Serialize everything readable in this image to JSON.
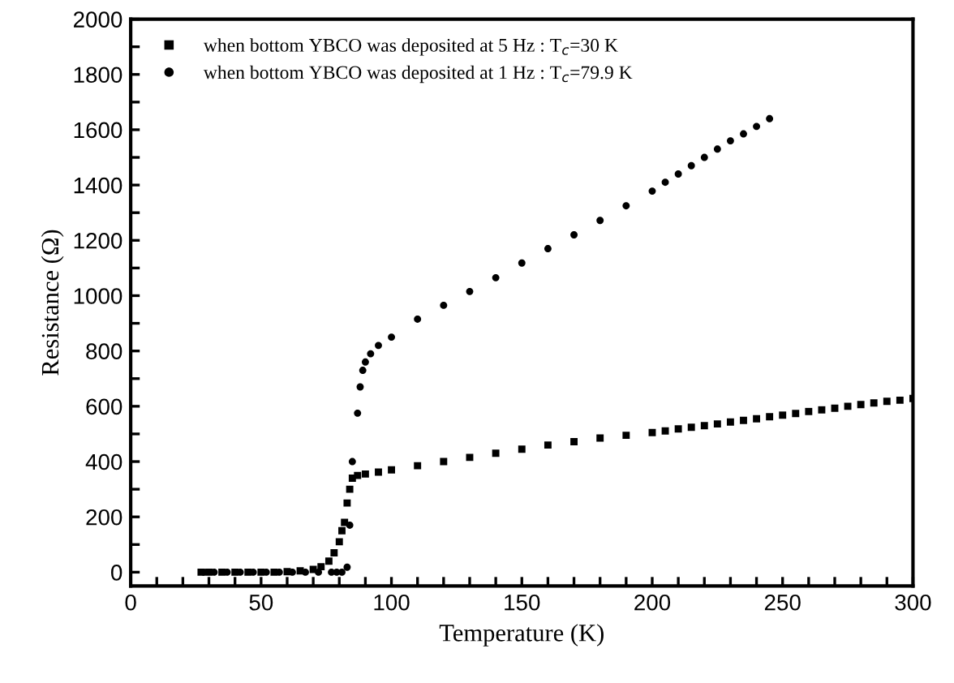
{
  "chart_data": {
    "type": "scatter",
    "xlabel": "Temperature (K)",
    "ylabel": "Resistance (Ω)",
    "xlim": [
      0,
      300
    ],
    "ylim": [
      -50,
      2000
    ],
    "xticks": [
      0,
      {
        "value": 10,
        "label": null
      },
      {
        "value": 20,
        "label": null
      },
      {
        "value": 30,
        "label": null
      },
      {
        "value": 40,
        "label": null
      },
      50,
      {
        "value": 60,
        "label": null
      },
      {
        "value": 70,
        "label": null
      },
      {
        "value": 80,
        "label": null
      },
      {
        "value": 90,
        "label": null
      },
      100,
      {
        "value": 110,
        "label": null
      },
      {
        "value": 120,
        "label": null
      },
      {
        "value": 130,
        "label": null
      },
      {
        "value": 140,
        "label": null
      },
      150,
      {
        "value": 160,
        "label": null
      },
      {
        "value": 170,
        "label": null
      },
      {
        "value": 180,
        "label": null
      },
      {
        "value": 190,
        "label": null
      },
      200,
      {
        "value": 210,
        "label": null
      },
      {
        "value": 220,
        "label": null
      },
      {
        "value": 230,
        "label": null
      },
      {
        "value": 240,
        "label": null
      },
      250,
      {
        "value": 260,
        "label": null
      },
      {
        "value": 270,
        "label": null
      },
      {
        "value": 280,
        "label": null
      },
      {
        "value": 290,
        "label": null
      },
      300
    ],
    "yticks": [
      0,
      {
        "value": 100,
        "label": null
      },
      200,
      {
        "value": 300,
        "label": null
      },
      400,
      {
        "value": 500,
        "label": null
      },
      600,
      {
        "value": 700,
        "label": null
      },
      800,
      {
        "value": 900,
        "label": null
      },
      1000,
      {
        "value": 1100,
        "label": null
      },
      1200,
      {
        "value": 1300,
        "label": null
      },
      1400,
      {
        "value": 1500,
        "label": null
      },
      1600,
      {
        "value": 1700,
        "label": null
      },
      1800,
      {
        "value": 1900,
        "label": null
      },
      2000
    ],
    "grid": false,
    "legend": "top left",
    "series": [
      {
        "name": "when bottom YBCO was deposited at 5 Hz : T$_{c}$=30 K",
        "color": "#000000",
        "marker": "square",
        "x": [
          27,
          30,
          35,
          40,
          45,
          50,
          55,
          60,
          65,
          70,
          73,
          76,
          78,
          80,
          81,
          82,
          83,
          84,
          85,
          87,
          90,
          95,
          100,
          110,
          120,
          130,
          140,
          150,
          160,
          170,
          180,
          190,
          200,
          205,
          210,
          215,
          220,
          225,
          230,
          235,
          240,
          245,
          250,
          255,
          260,
          265,
          270,
          275,
          280,
          285,
          290,
          295,
          300
        ],
        "values": [
          0,
          0,
          0,
          0,
          0,
          0,
          0,
          2,
          5,
          10,
          20,
          40,
          70,
          110,
          150,
          180,
          250,
          300,
          340,
          350,
          355,
          362,
          370,
          385,
          400,
          415,
          430,
          445,
          460,
          472,
          485,
          495,
          505,
          511,
          518,
          524,
          530,
          536,
          543,
          549,
          555,
          562,
          568,
          574,
          581,
          587,
          593,
          600,
          606,
          612,
          618,
          622,
          628
        ]
      },
      {
        "name": "when bottom YBCO was deposited at 1 Hz : T$_{c}$=79.9 K",
        "color": "#000000",
        "marker": "circle",
        "x": [
          28,
          32,
          37,
          42,
          47,
          52,
          57,
          62,
          67,
          72,
          77,
          79,
          81,
          83,
          84,
          85,
          87,
          88,
          89,
          90,
          92,
          95,
          100,
          110,
          120,
          130,
          140,
          150,
          160,
          170,
          180,
          190,
          200,
          205,
          210,
          215,
          220,
          225,
          230,
          235,
          240,
          245
        ],
        "values": [
          0,
          0,
          0,
          0,
          0,
          0,
          0,
          0,
          0,
          0,
          0,
          0,
          0,
          18,
          170,
          400,
          575,
          670,
          730,
          760,
          790,
          820,
          850,
          915,
          965,
          1015,
          1065,
          1118,
          1170,
          1220,
          1272,
          1325,
          1378,
          1410,
          1440,
          1470,
          1500,
          1530,
          1560,
          1585,
          1612,
          1640
        ]
      }
    ]
  }
}
